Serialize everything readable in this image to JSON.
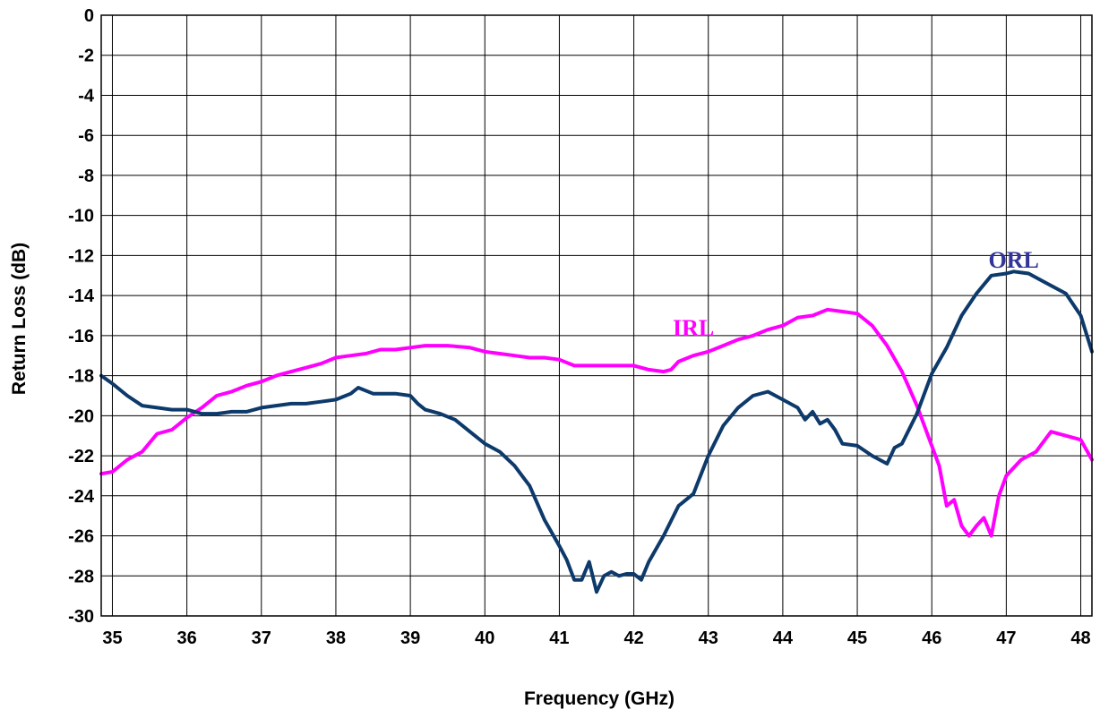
{
  "chart_data": {
    "type": "line",
    "title": "",
    "xlabel": "Frequency (GHz)",
    "ylabel": "Return Loss (dB)",
    "xlim": [
      34.85,
      48.15
    ],
    "ylim": [
      -30,
      0
    ],
    "x_ticks": [
      35,
      36,
      37,
      38,
      39,
      40,
      41,
      42,
      43,
      44,
      45,
      46,
      47,
      48
    ],
    "y_ticks": [
      0,
      -2,
      -4,
      -6,
      -8,
      -10,
      -12,
      -14,
      -16,
      -18,
      -20,
      -22,
      -24,
      -26,
      -28,
      -30
    ],
    "grid": true,
    "legend": "none",
    "series": [
      {
        "name": "IRL",
        "color": "#ff00ff",
        "x": [
          34.85,
          35.0,
          35.2,
          35.4,
          35.6,
          35.8,
          36.0,
          36.2,
          36.4,
          36.6,
          36.8,
          37.0,
          37.2,
          37.4,
          37.6,
          37.8,
          38.0,
          38.2,
          38.4,
          38.6,
          38.8,
          39.0,
          39.2,
          39.5,
          39.8,
          40.0,
          40.2,
          40.4,
          40.6,
          40.8,
          41.0,
          41.2,
          41.4,
          41.6,
          41.8,
          42.0,
          42.2,
          42.4,
          42.5,
          42.6,
          42.8,
          43.0,
          43.2,
          43.4,
          43.6,
          43.8,
          44.0,
          44.2,
          44.4,
          44.6,
          44.8,
          45.0,
          45.2,
          45.4,
          45.6,
          45.8,
          46.0,
          46.1,
          46.2,
          46.3,
          46.4,
          46.5,
          46.6,
          46.7,
          46.8,
          46.9,
          47.0,
          47.2,
          47.4,
          47.6,
          47.8,
          48.0,
          48.15
        ],
        "y": [
          -22.9,
          -22.8,
          -22.2,
          -21.8,
          -20.9,
          -20.7,
          -20.1,
          -19.6,
          -19.0,
          -18.8,
          -18.5,
          -18.3,
          -18.0,
          -17.8,
          -17.6,
          -17.4,
          -17.1,
          -17.0,
          -16.9,
          -16.7,
          -16.7,
          -16.6,
          -16.5,
          -16.5,
          -16.6,
          -16.8,
          -16.9,
          -17.0,
          -17.1,
          -17.1,
          -17.2,
          -17.5,
          -17.5,
          -17.5,
          -17.5,
          -17.5,
          -17.7,
          -17.8,
          -17.7,
          -17.3,
          -17.0,
          -16.8,
          -16.5,
          -16.2,
          -16.0,
          -15.7,
          -15.5,
          -15.1,
          -15.0,
          -14.7,
          -14.8,
          -14.9,
          -15.5,
          -16.5,
          -17.8,
          -19.5,
          -21.5,
          -22.5,
          -24.5,
          -24.2,
          -25.5,
          -26.0,
          -25.5,
          -25.1,
          -26.0,
          -24.0,
          -23.0,
          -22.2,
          -21.8,
          -20.8,
          -21.0,
          -21.2,
          -22.2
        ]
      },
      {
        "name": "ORL",
        "color": "#0d3a6b",
        "x": [
          34.85,
          35.0,
          35.2,
          35.4,
          35.6,
          35.8,
          36.0,
          36.2,
          36.4,
          36.6,
          36.8,
          37.0,
          37.2,
          37.4,
          37.6,
          37.8,
          38.0,
          38.2,
          38.3,
          38.5,
          38.8,
          39.0,
          39.1,
          39.2,
          39.4,
          39.6,
          39.8,
          40.0,
          40.2,
          40.4,
          40.5,
          40.6,
          40.8,
          41.0,
          41.1,
          41.2,
          41.3,
          41.4,
          41.5,
          41.6,
          41.7,
          41.8,
          41.9,
          42.0,
          42.1,
          42.2,
          42.4,
          42.6,
          42.8,
          43.0,
          43.2,
          43.4,
          43.6,
          43.8,
          44.0,
          44.2,
          44.3,
          44.4,
          44.5,
          44.6,
          44.7,
          44.8,
          45.0,
          45.2,
          45.4,
          45.5,
          45.6,
          45.8,
          46.0,
          46.2,
          46.4,
          46.6,
          46.8,
          47.0,
          47.1,
          47.3,
          47.5,
          47.8,
          48.0,
          48.15
        ],
        "y": [
          -18.0,
          -18.4,
          -19.0,
          -19.5,
          -19.6,
          -19.7,
          -19.7,
          -19.9,
          -19.9,
          -19.8,
          -19.8,
          -19.6,
          -19.5,
          -19.4,
          -19.4,
          -19.3,
          -19.2,
          -18.9,
          -18.6,
          -18.9,
          -18.9,
          -19.0,
          -19.4,
          -19.7,
          -19.9,
          -20.2,
          -20.8,
          -21.4,
          -21.8,
          -22.5,
          -23.0,
          -23.5,
          -25.2,
          -26.5,
          -27.2,
          -28.2,
          -28.2,
          -27.3,
          -28.8,
          -28.0,
          -27.8,
          -28.0,
          -27.9,
          -27.9,
          -28.2,
          -27.3,
          -26.0,
          -24.5,
          -23.9,
          -22.0,
          -20.5,
          -19.6,
          -19.0,
          -18.8,
          -19.2,
          -19.6,
          -20.2,
          -19.8,
          -20.4,
          -20.2,
          -20.7,
          -21.4,
          -21.5,
          -22.0,
          -22.4,
          -21.6,
          -21.4,
          -19.9,
          -17.9,
          -16.6,
          -15.0,
          -13.9,
          -13.0,
          -12.9,
          -12.8,
          -12.9,
          -13.3,
          -13.9,
          -15.0,
          -16.8
        ]
      }
    ]
  },
  "annotations": {
    "irl_label": {
      "text": "IRL",
      "color": "#ff00ff",
      "x": 42.8,
      "y": -16.0
    },
    "orl_label": {
      "text": "ORL",
      "color": "#333399",
      "x": 47.1,
      "y": -12.6
    }
  }
}
